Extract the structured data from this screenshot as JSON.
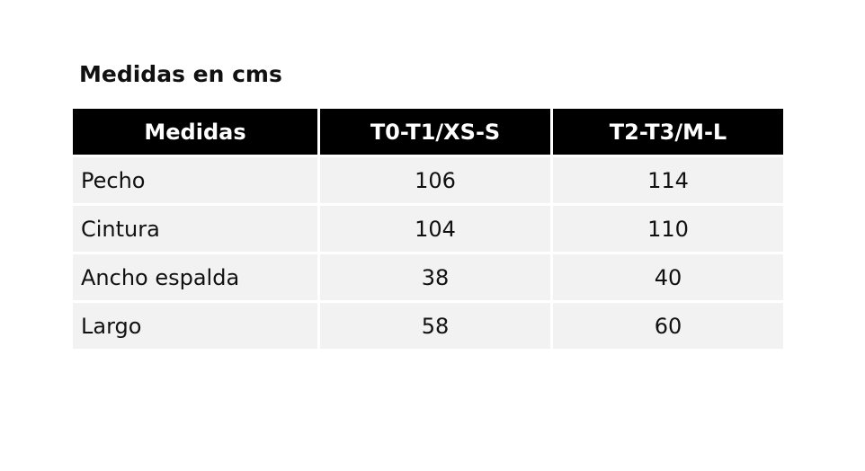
{
  "title": "Medidas en cms",
  "table": {
    "header": [
      "Medidas",
      "T0-T1/XS-S",
      "T2-T3/M-L"
    ],
    "rows": [
      [
        "Pecho",
        106,
        114
      ],
      [
        "Cintura",
        104,
        110
      ],
      [
        "Ancho espalda",
        38,
        40
      ],
      [
        "Largo",
        58,
        60
      ]
    ]
  }
}
